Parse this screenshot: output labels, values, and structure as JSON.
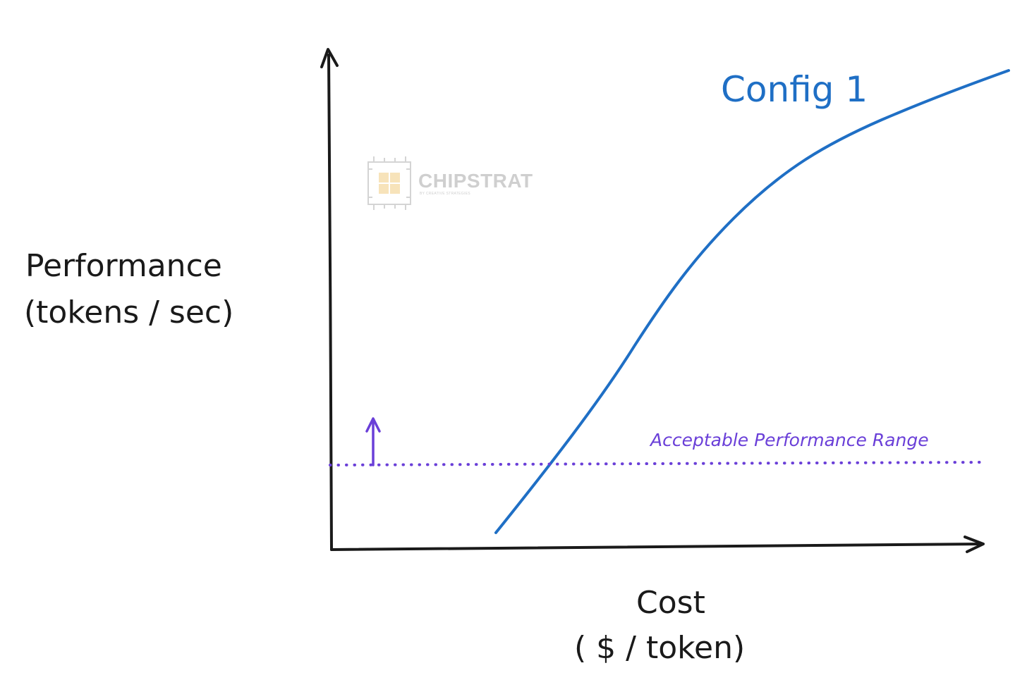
{
  "diagram": {
    "y_axis_label_line1": "Performance",
    "y_axis_label_line2": "(tokens / sec)",
    "x_axis_label_line1": "Cost",
    "x_axis_label_line2": "( $ / token)",
    "series_label": "Config 1",
    "threshold_label": "Acceptable Performance Range",
    "watermark_title": "CHIPSTRAT",
    "watermark_subtitle": "BY CREATIVE STRATEGIES"
  },
  "colors": {
    "axis": "#1a1a1a",
    "curve": "#1f6fc5",
    "threshold": "#6a3fd8",
    "watermark": "#cfcfcf",
    "watermark_accent": "#f4d9a3"
  },
  "icons": {
    "watermark_logo": "chip-icon",
    "threshold_arrow": "arrow-up-icon"
  }
}
